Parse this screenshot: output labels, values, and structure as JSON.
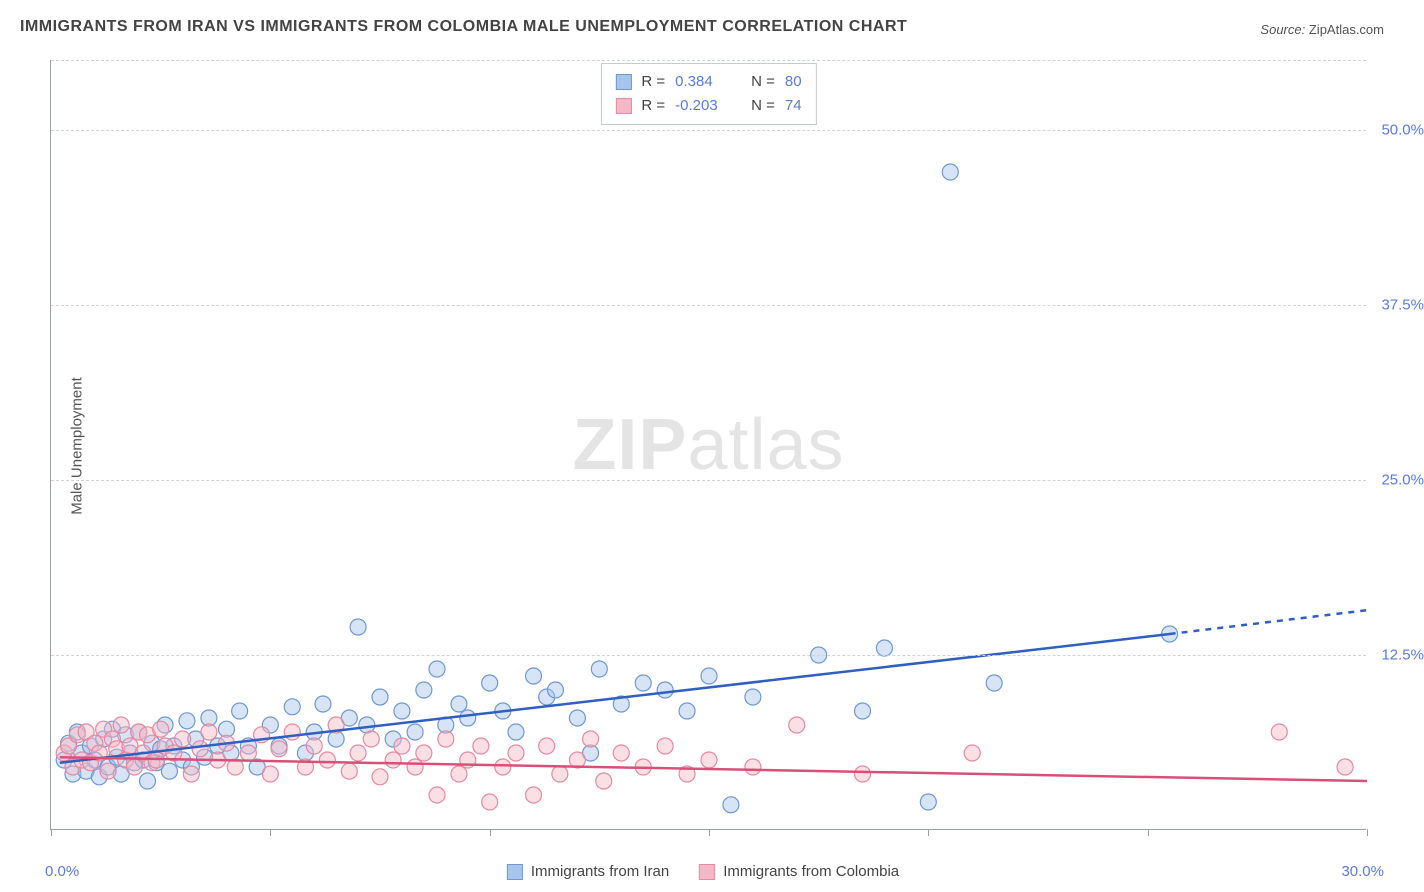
{
  "title": "IMMIGRANTS FROM IRAN VS IMMIGRANTS FROM COLOMBIA MALE UNEMPLOYMENT CORRELATION CHART",
  "source_label": "Source:",
  "source_value": "ZipAtlas.com",
  "ylabel": "Male Unemployment",
  "watermark_bold": "ZIP",
  "watermark_rest": "atlas",
  "chart": {
    "type": "scatter-with-regression",
    "background_color": "#ffffff",
    "grid_color": "#d0d4da",
    "axis_color": "#9aa0aa",
    "xlim": [
      0,
      30
    ],
    "ylim": [
      0,
      55
    ],
    "xtick_positions": [
      0,
      5,
      10,
      15,
      20,
      25,
      30
    ],
    "xlabel_min": "0.0%",
    "xlabel_max": "30.0%",
    "ytick_labels": [
      {
        "v": 12.5,
        "label": "12.5%"
      },
      {
        "v": 25.0,
        "label": "25.0%"
      },
      {
        "v": 37.5,
        "label": "37.5%"
      },
      {
        "v": 50.0,
        "label": "50.0%"
      }
    ],
    "marker_radius": 8,
    "marker_fill_opacity": 0.45,
    "marker_stroke_width": 1.2,
    "line_width": 2.5,
    "title_fontsize": 16,
    "label_fontsize": 15,
    "tick_fontsize": 15,
    "tick_label_color": "#5b7bd5"
  },
  "series": [
    {
      "name": "Immigrants from Iran",
      "color_fill": "#a7c4ea",
      "color_stroke": "#6f98d1",
      "line_color": "#2f5fc0",
      "R": "0.384",
      "N": "80",
      "regression": {
        "x1": 0.2,
        "y1": 4.8,
        "x2_solid": 25.5,
        "y2_solid": 14.0,
        "x2_dash": 30.0,
        "y2_dash": 15.7
      },
      "points": [
        [
          0.3,
          5.0
        ],
        [
          0.4,
          6.2
        ],
        [
          0.5,
          4.0
        ],
        [
          0.6,
          7.0
        ],
        [
          0.7,
          5.5
        ],
        [
          0.8,
          4.2
        ],
        [
          0.9,
          6.0
        ],
        [
          1.0,
          5.0
        ],
        [
          1.1,
          3.8
        ],
        [
          1.2,
          6.5
        ],
        [
          1.3,
          4.5
        ],
        [
          1.4,
          7.2
        ],
        [
          1.5,
          5.2
        ],
        [
          1.6,
          4.0
        ],
        [
          1.7,
          6.8
        ],
        [
          1.8,
          5.5
        ],
        [
          1.9,
          4.8
        ],
        [
          2.0,
          7.0
        ],
        [
          2.1,
          5.0
        ],
        [
          2.2,
          3.5
        ],
        [
          2.3,
          6.2
        ],
        [
          2.4,
          4.8
        ],
        [
          2.5,
          5.8
        ],
        [
          2.6,
          7.5
        ],
        [
          2.7,
          4.2
        ],
        [
          2.8,
          6.0
        ],
        [
          3.0,
          5.0
        ],
        [
          3.1,
          7.8
        ],
        [
          3.2,
          4.5
        ],
        [
          3.3,
          6.5
        ],
        [
          3.5,
          5.2
        ],
        [
          3.6,
          8.0
        ],
        [
          3.8,
          6.0
        ],
        [
          4.0,
          7.2
        ],
        [
          4.1,
          5.5
        ],
        [
          4.3,
          8.5
        ],
        [
          4.5,
          6.0
        ],
        [
          4.7,
          4.5
        ],
        [
          5.0,
          7.5
        ],
        [
          5.2,
          6.0
        ],
        [
          5.5,
          8.8
        ],
        [
          5.8,
          5.5
        ],
        [
          6.0,
          7.0
        ],
        [
          6.2,
          9.0
        ],
        [
          6.5,
          6.5
        ],
        [
          6.8,
          8.0
        ],
        [
          7.0,
          14.5
        ],
        [
          7.2,
          7.5
        ],
        [
          7.5,
          9.5
        ],
        [
          7.8,
          6.5
        ],
        [
          8.0,
          8.5
        ],
        [
          8.3,
          7.0
        ],
        [
          8.5,
          10.0
        ],
        [
          8.8,
          11.5
        ],
        [
          9.0,
          7.5
        ],
        [
          9.3,
          9.0
        ],
        [
          9.5,
          8.0
        ],
        [
          10.0,
          10.5
        ],
        [
          10.3,
          8.5
        ],
        [
          10.6,
          7.0
        ],
        [
          11.0,
          11.0
        ],
        [
          11.3,
          9.5
        ],
        [
          11.5,
          10.0
        ],
        [
          12.0,
          8.0
        ],
        [
          12.3,
          5.5
        ],
        [
          12.5,
          11.5
        ],
        [
          13.0,
          9.0
        ],
        [
          13.5,
          10.5
        ],
        [
          14.0,
          10.0
        ],
        [
          14.5,
          8.5
        ],
        [
          15.0,
          11.0
        ],
        [
          15.5,
          1.8
        ],
        [
          16.0,
          9.5
        ],
        [
          17.5,
          12.5
        ],
        [
          18.5,
          8.5
        ],
        [
          19.0,
          13.0
        ],
        [
          20.0,
          2.0
        ],
        [
          20.5,
          47.0
        ],
        [
          21.5,
          10.5
        ],
        [
          25.5,
          14.0
        ]
      ]
    },
    {
      "name": "Immigrants from Colombia",
      "color_fill": "#f4b8c6",
      "color_stroke": "#e58aa1",
      "line_color": "#d94f78",
      "R": "-0.203",
      "N": "74",
      "regression": {
        "x1": 0.2,
        "y1": 5.2,
        "x2_solid": 30.0,
        "y2_solid": 3.5,
        "x2_dash": 30.0,
        "y2_dash": 3.5
      },
      "points": [
        [
          0.3,
          5.5
        ],
        [
          0.4,
          6.0
        ],
        [
          0.5,
          4.5
        ],
        [
          0.6,
          6.8
        ],
        [
          0.7,
          5.0
        ],
        [
          0.8,
          7.0
        ],
        [
          0.9,
          4.8
        ],
        [
          1.0,
          6.2
        ],
        [
          1.1,
          5.5
        ],
        [
          1.2,
          7.2
        ],
        [
          1.3,
          4.2
        ],
        [
          1.4,
          6.5
        ],
        [
          1.5,
          5.8
        ],
        [
          1.6,
          7.5
        ],
        [
          1.7,
          5.0
        ],
        [
          1.8,
          6.0
        ],
        [
          1.9,
          4.5
        ],
        [
          2.0,
          7.0
        ],
        [
          2.1,
          5.5
        ],
        [
          2.2,
          6.8
        ],
        [
          2.3,
          4.8
        ],
        [
          2.4,
          5.0
        ],
        [
          2.5,
          7.2
        ],
        [
          2.6,
          6.0
        ],
        [
          2.8,
          5.5
        ],
        [
          3.0,
          6.5
        ],
        [
          3.2,
          4.0
        ],
        [
          3.4,
          5.8
        ],
        [
          3.6,
          7.0
        ],
        [
          3.8,
          5.0
        ],
        [
          4.0,
          6.2
        ],
        [
          4.2,
          4.5
        ],
        [
          4.5,
          5.5
        ],
        [
          4.8,
          6.8
        ],
        [
          5.0,
          4.0
        ],
        [
          5.2,
          5.8
        ],
        [
          5.5,
          7.0
        ],
        [
          5.8,
          4.5
        ],
        [
          6.0,
          6.0
        ],
        [
          6.3,
          5.0
        ],
        [
          6.5,
          7.5
        ],
        [
          6.8,
          4.2
        ],
        [
          7.0,
          5.5
        ],
        [
          7.3,
          6.5
        ],
        [
          7.5,
          3.8
        ],
        [
          7.8,
          5.0
        ],
        [
          8.0,
          6.0
        ],
        [
          8.3,
          4.5
        ],
        [
          8.5,
          5.5
        ],
        [
          8.8,
          2.5
        ],
        [
          9.0,
          6.5
        ],
        [
          9.3,
          4.0
        ],
        [
          9.5,
          5.0
        ],
        [
          9.8,
          6.0
        ],
        [
          10.0,
          2.0
        ],
        [
          10.3,
          4.5
        ],
        [
          10.6,
          5.5
        ],
        [
          11.0,
          2.5
        ],
        [
          11.3,
          6.0
        ],
        [
          11.6,
          4.0
        ],
        [
          12.0,
          5.0
        ],
        [
          12.3,
          6.5
        ],
        [
          12.6,
          3.5
        ],
        [
          13.0,
          5.5
        ],
        [
          13.5,
          4.5
        ],
        [
          14.0,
          6.0
        ],
        [
          14.5,
          4.0
        ],
        [
          15.0,
          5.0
        ],
        [
          16.0,
          4.5
        ],
        [
          17.0,
          7.5
        ],
        [
          18.5,
          4.0
        ],
        [
          21.0,
          5.5
        ],
        [
          28.0,
          7.0
        ],
        [
          29.5,
          4.5
        ]
      ]
    }
  ],
  "legend_bottom": [
    {
      "label": "Immigrants from Iran",
      "fill": "#a7c4ea",
      "stroke": "#6f98d1"
    },
    {
      "label": "Immigrants from Colombia",
      "fill": "#f4b8c6",
      "stroke": "#e58aa1"
    }
  ]
}
